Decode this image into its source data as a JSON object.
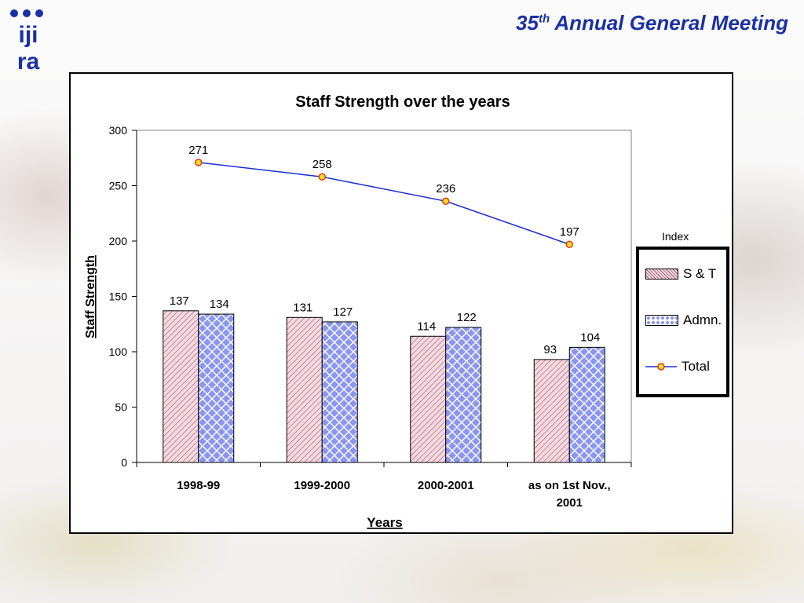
{
  "slide": {
    "title_number": "35",
    "title_suffix": "th",
    "title_rest": " Annual General Meeting",
    "logo_top": "iji",
    "logo_bottom": "ra"
  },
  "colors": {
    "title": "#1b2fa6",
    "st_fill": "#f5d9e0",
    "st_hatch": "#9a5a70",
    "admn_fill": "#ffffff",
    "admn_pattern": "#8a96f0",
    "total_line": "#1e2ed0",
    "total_marker_fill": "#ffdd22",
    "total_marker_stroke": "#e03a1a"
  },
  "legend": {
    "title": "Index",
    "items": [
      "S & T",
      "Admn.",
      "Total"
    ]
  },
  "chart_data": {
    "type": "bar",
    "title": "Staff Strength over the years",
    "xlabel": "Years",
    "ylabel": "Staff Strength",
    "ylim": [
      0,
      300
    ],
    "yticks": [
      0,
      50,
      100,
      150,
      200,
      250,
      300
    ],
    "categories": [
      [
        "1998-99"
      ],
      [
        "1999-2000"
      ],
      [
        "2000-2001"
      ],
      [
        "as on 1st Nov.,",
        "2001"
      ]
    ],
    "series": [
      {
        "name": "S & T",
        "type": "bar",
        "values": [
          137,
          131,
          114,
          93
        ]
      },
      {
        "name": "Admn.",
        "type": "bar",
        "values": [
          134,
          127,
          122,
          104
        ]
      },
      {
        "name": "Total",
        "type": "line",
        "values": [
          271,
          258,
          236,
          197
        ]
      }
    ],
    "grid": false,
    "legend_position": "right"
  }
}
